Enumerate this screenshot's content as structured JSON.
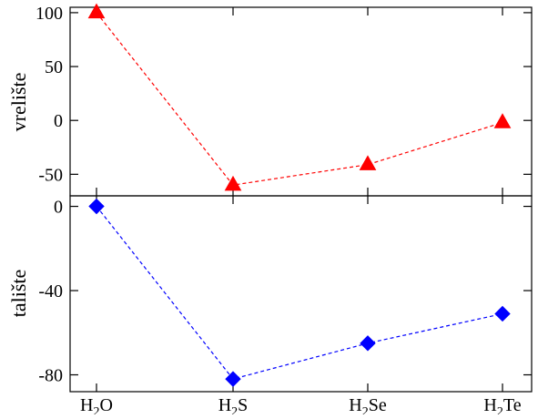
{
  "chart_data": [
    {
      "type": "line",
      "ylabel": "vrelište",
      "categories": [
        "H2O",
        "H2S",
        "H2Se",
        "H2Te"
      ],
      "ylim": [
        -70,
        105
      ],
      "yticks": [
        100,
        50,
        0,
        -50
      ],
      "ytick_labels": [
        "100",
        "50",
        "0",
        "-50"
      ],
      "grid": false,
      "series": [
        {
          "values": [
            100,
            -60,
            -41,
            -2
          ],
          "color": "#ff0000",
          "marker": "triangle",
          "line_style": "dashed"
        }
      ]
    },
    {
      "type": "line",
      "ylabel": "talište",
      "categories": [
        "H2O",
        "H2S",
        "H2Se",
        "H2Te"
      ],
      "ylim": [
        -88,
        5
      ],
      "yticks": [
        0,
        -40,
        -80
      ],
      "ytick_labels": [
        "0",
        "-40",
        "-80"
      ],
      "grid": false,
      "series": [
        {
          "values": [
            0,
            -82,
            -65,
            -51
          ],
          "color": "#0000ff",
          "marker": "diamond",
          "line_style": "dashed"
        }
      ]
    }
  ],
  "x_tick_labels": [
    {
      "base": "H",
      "sub": "2",
      "rest": "O"
    },
    {
      "base": "H",
      "sub": "2",
      "rest": "S"
    },
    {
      "base": "H",
      "sub": "2",
      "rest": "Se"
    },
    {
      "base": "H",
      "sub": "2",
      "rest": "Te"
    }
  ]
}
